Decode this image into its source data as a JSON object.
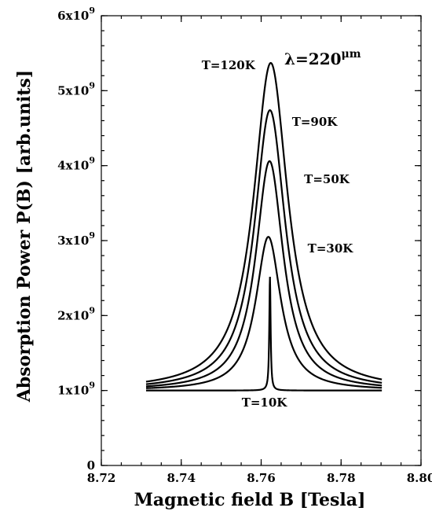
{
  "chart_data": {
    "type": "line",
    "title": "",
    "xlabel": "Magnetic field B [Tesla]",
    "ylabel": "Absorption Power P(B) [arb.units]",
    "xlim": [
      8.72,
      8.8
    ],
    "ylim": [
      0,
      6000000000
    ],
    "x_ticks": [
      "8.72",
      "8.74",
      "8.76",
      "8.78",
      "8.80"
    ],
    "y_ticks": [
      {
        "value": 0,
        "base": "0",
        "exp": ""
      },
      {
        "value": 1000000000,
        "base": "1x10",
        "exp": "9"
      },
      {
        "value": 2000000000,
        "base": "2x10",
        "exp": "9"
      },
      {
        "value": 3000000000,
        "base": "3x10",
        "exp": "9"
      },
      {
        "value": 4000000000,
        "base": "4x10",
        "exp": "9"
      },
      {
        "value": 5000000000,
        "base": "5x10",
        "exp": "9"
      },
      {
        "value": 6000000000,
        "base": "6x10",
        "exp": "9"
      }
    ],
    "annotation": {
      "lambda": "λ",
      "text": "=220",
      "unit": "μm"
    },
    "grid": false,
    "legend": "inline labels",
    "x_range": [
      8.7312,
      8.7902
    ],
    "series": [
      {
        "name": "T=120K",
        "peak_x": 8.7624,
        "peak_y": 5370000000,
        "baseline": 1000000000,
        "width": 0.0052
      },
      {
        "name": "T=90K",
        "peak_x": 8.7622,
        "peak_y": 4740000000,
        "baseline": 1000000000,
        "width": 0.0047
      },
      {
        "name": "T=50K",
        "peak_x": 8.7621,
        "peak_y": 4060000000,
        "baseline": 1000000000,
        "width": 0.0042
      },
      {
        "name": "T=30K",
        "peak_x": 8.7618,
        "peak_y": 3050000000,
        "baseline": 1000000000,
        "width": 0.0038
      },
      {
        "name": "T=10K",
        "peak_x": 8.7622,
        "peak_y": 2520000000,
        "baseline": 1000000000,
        "width": 0.0002
      }
    ]
  }
}
